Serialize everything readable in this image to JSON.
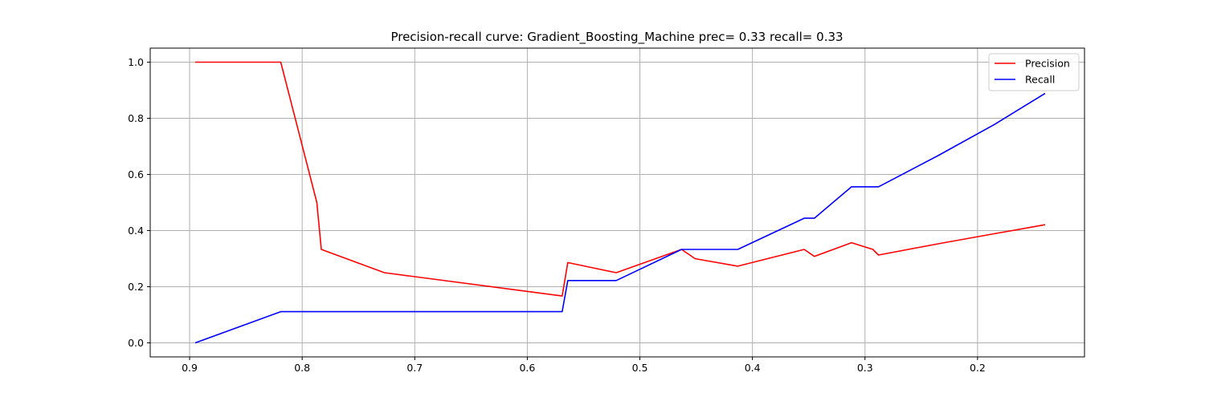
{
  "chart_data": {
    "type": "line",
    "title": "Precision-recall curve: Gradient_Boosting_Machine prec= 0.33 recall= 0.33",
    "xlabel": "",
    "ylabel": "",
    "xlim": [
      0.935,
      0.105
    ],
    "ylim": [
      -0.05,
      1.05
    ],
    "x_inverted": true,
    "grid": true,
    "legend_position": "top-right",
    "xticks": [
      {
        "value": 0.9,
        "label": "0.9"
      },
      {
        "value": 0.8,
        "label": "0.8"
      },
      {
        "value": 0.7,
        "label": "0.7"
      },
      {
        "value": 0.6,
        "label": "0.6"
      },
      {
        "value": 0.5,
        "label": "0.5"
      },
      {
        "value": 0.4,
        "label": "0.4"
      },
      {
        "value": 0.3,
        "label": "0.3"
      },
      {
        "value": 0.2,
        "label": "0.2"
      }
    ],
    "yticks": [
      {
        "value": 0.0,
        "label": "0.0"
      },
      {
        "value": 0.2,
        "label": "0.2"
      },
      {
        "value": 0.4,
        "label": "0.4"
      },
      {
        "value": 0.6,
        "label": "0.6"
      },
      {
        "value": 0.8,
        "label": "0.8"
      },
      {
        "value": 1.0,
        "label": "1.0"
      }
    ],
    "series": [
      {
        "name": "Precision",
        "color": "#ff0000",
        "points": [
          [
            0.895,
            1.0
          ],
          [
            0.819,
            1.0
          ],
          [
            0.787,
            0.5
          ],
          [
            0.783,
            0.333
          ],
          [
            0.727,
            0.25
          ],
          [
            0.569,
            0.167
          ],
          [
            0.564,
            0.286
          ],
          [
            0.521,
            0.25
          ],
          [
            0.463,
            0.333
          ],
          [
            0.451,
            0.3
          ],
          [
            0.413,
            0.273
          ],
          [
            0.354,
            0.333
          ],
          [
            0.345,
            0.308
          ],
          [
            0.312,
            0.357
          ],
          [
            0.293,
            0.333
          ],
          [
            0.288,
            0.313
          ],
          [
            0.235,
            0.353
          ],
          [
            0.185,
            0.389
          ],
          [
            0.14,
            0.421
          ]
        ]
      },
      {
        "name": "Recall",
        "color": "#0000ff",
        "points": [
          [
            0.895,
            0.0
          ],
          [
            0.819,
            0.111
          ],
          [
            0.569,
            0.111
          ],
          [
            0.564,
            0.222
          ],
          [
            0.521,
            0.222
          ],
          [
            0.463,
            0.333
          ],
          [
            0.413,
            0.333
          ],
          [
            0.354,
            0.444
          ],
          [
            0.345,
            0.444
          ],
          [
            0.312,
            0.556
          ],
          [
            0.288,
            0.556
          ],
          [
            0.235,
            0.667
          ],
          [
            0.185,
            0.778
          ],
          [
            0.14,
            0.889
          ]
        ]
      }
    ]
  }
}
